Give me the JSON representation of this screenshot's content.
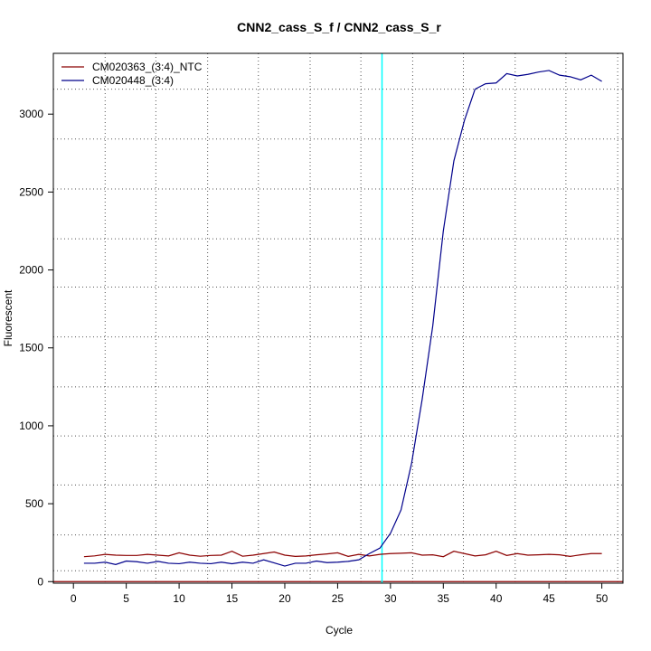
{
  "chart_data": {
    "type": "line",
    "title": "CNN2_cass_S_f / CNN2_cass_S_r",
    "xlabel": "Cycle",
    "ylabel": "Fluorescent",
    "xlim": [
      -1.9,
      52
    ],
    "ylim": [
      -10,
      3390
    ],
    "x_ticks": [
      0,
      5,
      10,
      15,
      20,
      25,
      30,
      35,
      40,
      45,
      50
    ],
    "y_ticks": [
      0,
      500,
      1000,
      1500,
      2000,
      2500,
      3000
    ],
    "x_grid": [
      3,
      7.8,
      12.7,
      17.5,
      22.4,
      27.2,
      32.1,
      36.9,
      41.8,
      46.6,
      51.5
    ],
    "y_grid": [
      70,
      300,
      620,
      935,
      1250,
      1570,
      1890,
      2200,
      2520,
      2840,
      3160
    ],
    "grid": true,
    "legend_position": "top-left",
    "threshold": {
      "x": 29.2,
      "color": "#00ffff"
    },
    "baseline": {
      "y": 0,
      "color": "#8b0000"
    },
    "cycles": [
      1,
      2,
      3,
      4,
      5,
      6,
      7,
      8,
      9,
      10,
      11,
      12,
      13,
      14,
      15,
      16,
      17,
      18,
      19,
      20,
      21,
      22,
      23,
      24,
      25,
      26,
      27,
      28,
      29,
      30,
      31,
      32,
      33,
      34,
      35,
      36,
      37,
      38,
      39,
      40,
      41,
      42,
      43,
      44,
      45,
      46,
      47,
      48,
      49,
      50
    ],
    "series": [
      {
        "name": "CM020363_(3:4)_NTC",
        "color": "#8b0000",
        "values": [
          160,
          165,
          175,
          170,
          168,
          168,
          175,
          170,
          165,
          185,
          170,
          163,
          168,
          170,
          195,
          163,
          170,
          180,
          190,
          170,
          162,
          165,
          172,
          178,
          185,
          162,
          175,
          165,
          175,
          180,
          182,
          185,
          170,
          172,
          160,
          195,
          180,
          165,
          172,
          195,
          168,
          180,
          170,
          172,
          175,
          172,
          162,
          172,
          180,
          180
        ]
      },
      {
        "name": "CM020448_(3:4)",
        "color": "#00008b",
        "values": [
          118,
          118,
          125,
          110,
          132,
          128,
          118,
          130,
          118,
          115,
          125,
          118,
          115,
          125,
          115,
          125,
          118,
          140,
          120,
          100,
          118,
          118,
          132,
          122,
          125,
          130,
          140,
          180,
          215,
          310,
          460,
          760,
          1170,
          1640,
          2250,
          2700,
          2960,
          3160,
          3195,
          3200,
          3260,
          3245,
          3255,
          3270,
          3280,
          3250,
          3240,
          3220,
          3250,
          3210
        ]
      }
    ]
  }
}
